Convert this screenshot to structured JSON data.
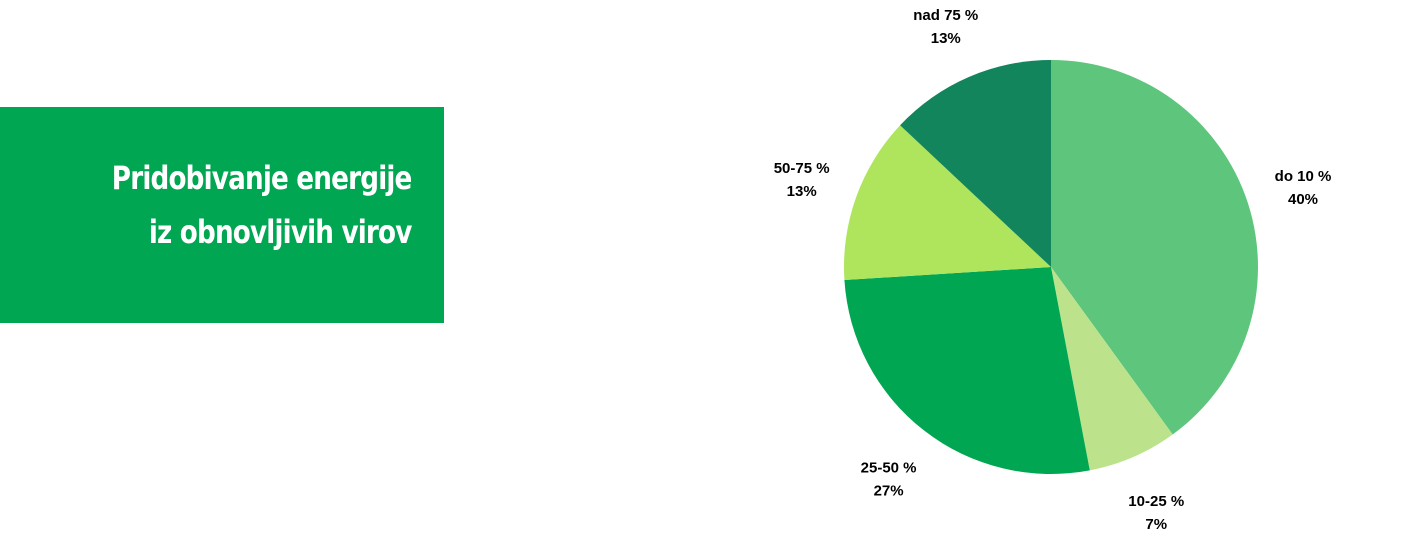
{
  "title_box": {
    "line1": "Pridobivanje energije",
    "line2": "iz obnovljivih virov",
    "background": "#00a651"
  },
  "chart_data": {
    "type": "pie",
    "slices": [
      {
        "label": "do 10 %",
        "value": 40,
        "value_label": "40%",
        "color": "#5ec57c"
      },
      {
        "label": "10-25 %",
        "value": 7,
        "value_label": "7%",
        "color": "#bce38c"
      },
      {
        "label": "25-50 %",
        "value": 27,
        "value_label": "27%",
        "color": "#00a651"
      },
      {
        "label": "50-75 %",
        "value": 13,
        "value_label": "13%",
        "color": "#aee55c"
      },
      {
        "label": "nad 75 %",
        "value": 13,
        "value_label": "13%",
        "color": "#12855c"
      }
    ],
    "start_angle": "12 o'clock",
    "direction": "clockwise",
    "legend": "none"
  }
}
